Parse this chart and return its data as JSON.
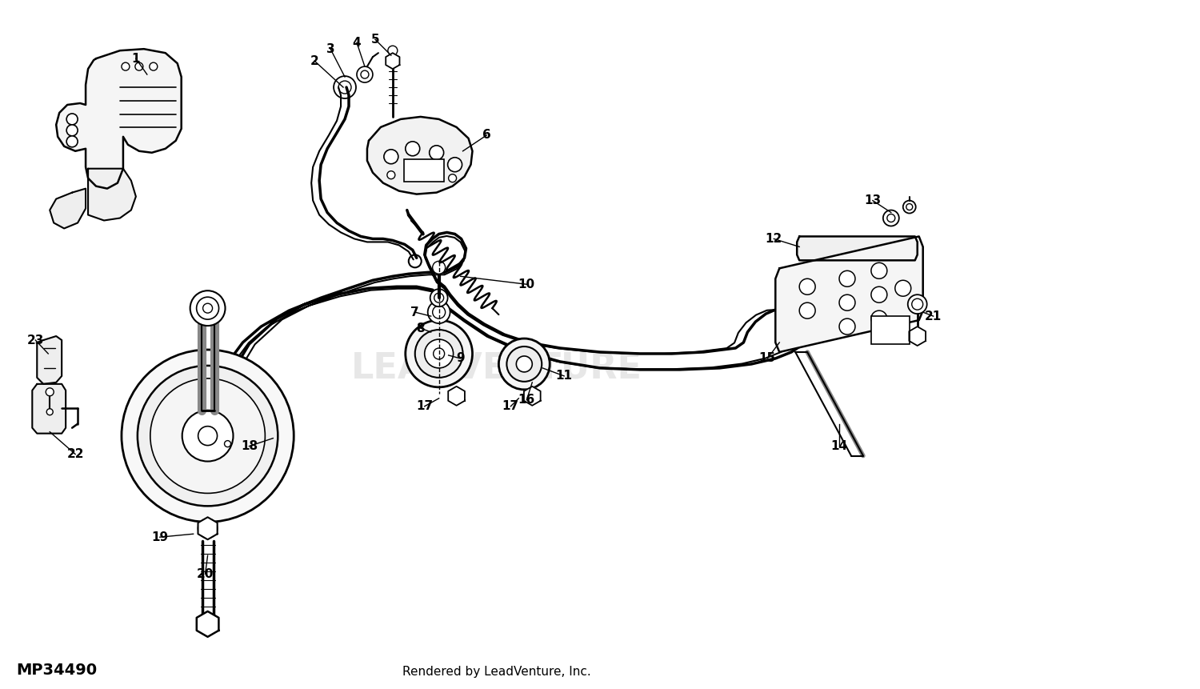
{
  "bg_color": "#ffffff",
  "line_color": "#000000",
  "footer_left": "MP34490",
  "footer_right": "Rendered by LeadVenture, Inc.",
  "figsize": [
    15.0,
    8.61
  ],
  "dpi": 100
}
